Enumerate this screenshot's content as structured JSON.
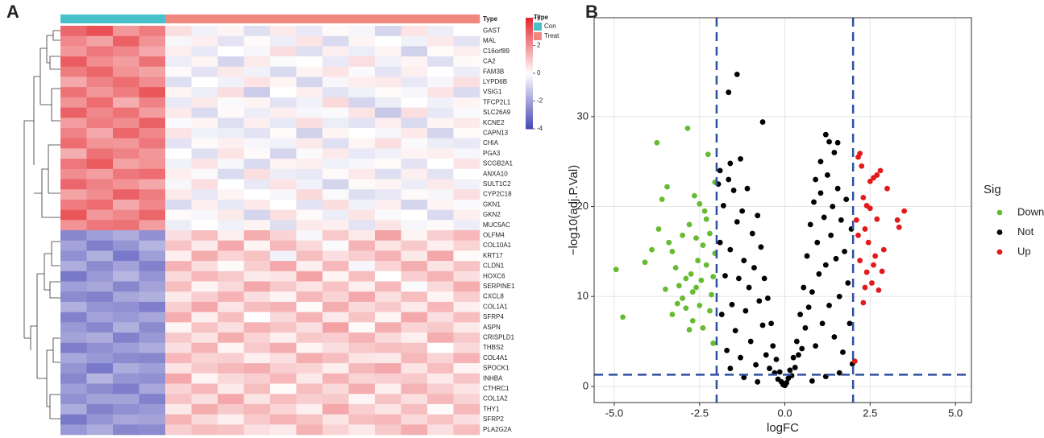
{
  "chart_data": [
    {
      "type": "heatmap",
      "panel_label": "A",
      "type_label": "Type",
      "legend_title": "Type",
      "groups": [
        {
          "name": "Con",
          "color": "#47c1c9"
        },
        {
          "name": "Treat",
          "color": "#f0877f"
        }
      ],
      "column_types": [
        "Con",
        "Con",
        "Con",
        "Con",
        "Treat",
        "Treat",
        "Treat",
        "Treat",
        "Treat",
        "Treat",
        "Treat",
        "Treat",
        "Treat",
        "Treat",
        "Treat",
        "Treat"
      ],
      "rows": [
        "GAST",
        "MAL",
        "C16orf89",
        "CA2",
        "FAM3B",
        "LYPD6B",
        "VSIG1",
        "TFCP2L1",
        "SLC26A9",
        "KCNE2",
        "CAPN13",
        "CHIA",
        "PGA3",
        "SCGB2A1",
        "ANXA10",
        "SULT1C2",
        "CYP2C18",
        "GKN1",
        "GKN2",
        "MUC5AC",
        "OLFM4",
        "COL10A1",
        "KRT17",
        "CLDN1",
        "HOXC6",
        "SERPINE1",
        "CXCL8",
        "COL1A1",
        "SFRP4",
        "ASPN",
        "CRISPLD1",
        "THBS2",
        "COL4A1",
        "SPOCK1",
        "INHBA",
        "CTHRC1",
        "COL1A2",
        "THY1",
        "SFRP2",
        "PLA2G2A"
      ],
      "values": [
        [
          2.8,
          3.2,
          1.9,
          2.4,
          0.6,
          -0.3,
          0.2,
          -0.7,
          0.4,
          -0.5,
          0.1,
          -0.2,
          -0.9,
          0.5,
          -0.4,
          0.0
        ],
        [
          2.2,
          1.7,
          2.9,
          2.0,
          -0.2,
          0.3,
          -0.6,
          0.1,
          -0.4,
          0.5,
          -0.8,
          0.2,
          0.0,
          -0.3,
          0.4,
          -0.6
        ],
        [
          1.9,
          2.5,
          2.2,
          1.6,
          0.3,
          -0.5,
          0.0,
          -0.2,
          0.6,
          -0.7,
          0.3,
          -0.4,
          0.2,
          -1.0,
          0.1,
          0.3
        ],
        [
          3.0,
          2.1,
          1.8,
          2.6,
          -0.4,
          0.2,
          -0.9,
          0.4,
          -0.1,
          0.0,
          -0.5,
          0.6,
          -0.3,
          0.2,
          -0.7,
          0.1
        ],
        [
          2.4,
          2.8,
          2.0,
          1.7,
          0.1,
          -0.6,
          0.4,
          -0.3,
          -0.8,
          0.2,
          0.5,
          -0.1,
          -0.6,
          0.3,
          0.0,
          -0.4
        ],
        [
          1.6,
          2.3,
          2.7,
          2.1,
          -0.7,
          0.0,
          -0.3,
          0.5,
          0.2,
          -0.9,
          -0.2,
          0.3,
          0.4,
          -0.5,
          -0.2,
          0.6
        ],
        [
          2.6,
          1.9,
          2.4,
          3.1,
          0.2,
          -0.4,
          0.6,
          -1.1,
          0.0,
          0.3,
          -0.6,
          -0.3,
          0.1,
          -0.2,
          0.5,
          -0.8
        ],
        [
          2.0,
          2.7,
          1.5,
          2.3,
          -0.5,
          0.4,
          -0.1,
          0.2,
          -0.6,
          -0.3,
          0.7,
          -0.9,
          -0.4,
          0.0,
          -0.3,
          0.2
        ],
        [
          2.9,
          2.2,
          2.6,
          1.8,
          0.4,
          -0.8,
          0.1,
          -0.4,
          0.3,
          -0.2,
          -0.1,
          0.5,
          -1.2,
          0.6,
          -0.5,
          -0.1
        ],
        [
          1.8,
          2.4,
          2.1,
          2.9,
          -0.1,
          0.2,
          -0.7,
          0.3,
          -0.5,
          0.6,
          -0.4,
          -0.6,
          0.3,
          -0.8,
          0.2,
          0.4
        ],
        [
          2.3,
          1.6,
          2.8,
          2.2,
          0.5,
          -0.3,
          -0.4,
          -0.6,
          0.1,
          -1.0,
          0.2,
          0.0,
          -0.2,
          0.4,
          -0.9,
          0.1
        ],
        [
          2.7,
          2.0,
          1.9,
          2.5,
          -0.6,
          0.1,
          0.3,
          -0.2,
          -0.3,
          0.4,
          -0.7,
          0.2,
          0.6,
          -0.1,
          -0.4,
          -0.5
        ],
        [
          1.5,
          2.6,
          2.3,
          1.9,
          0.0,
          -0.7,
          0.5,
          0.1,
          -0.9,
          -0.1,
          0.4,
          -0.5,
          -0.3,
          0.2,
          0.3,
          -0.2
        ],
        [
          2.5,
          3.0,
          1.7,
          2.0,
          -0.3,
          0.5,
          -0.2,
          -0.8,
          0.2,
          0.3,
          -0.3,
          -0.2,
          0.1,
          -0.6,
          0.0,
          0.5
        ],
        [
          2.1,
          1.8,
          2.5,
          2.7,
          0.3,
          -0.1,
          -0.8,
          0.6,
          -0.4,
          -0.5,
          0.1,
          0.4,
          -0.7,
          0.3,
          -0.6,
          0.0
        ],
        [
          2.8,
          2.3,
          2.0,
          1.6,
          -0.2,
          0.6,
          0.0,
          -0.5,
          0.5,
          -0.3,
          -0.9,
          0.1,
          0.2,
          -0.4,
          0.4,
          -0.3
        ],
        [
          1.7,
          2.1,
          2.9,
          2.4,
          0.4,
          -0.5,
          0.2,
          0.0,
          -0.2,
          0.7,
          -0.1,
          -0.7,
          -0.5,
          0.1,
          -0.2,
          0.6
        ],
        [
          2.4,
          2.7,
          1.6,
          2.2,
          -0.8,
          0.3,
          -0.5,
          0.4,
          0.0,
          -0.6,
          0.6,
          -0.3,
          0.3,
          -0.9,
          0.2,
          -0.1
        ],
        [
          3.1,
          1.9,
          2.2,
          2.8,
          0.1,
          -0.2,
          0.4,
          -0.9,
          0.6,
          0.1,
          -0.4,
          0.5,
          -0.1,
          0.0,
          -0.8,
          0.3
        ],
        [
          2.0,
          2.5,
          2.6,
          1.8,
          -0.4,
          0.0,
          -0.3,
          0.2,
          -0.7,
          0.4,
          0.3,
          -0.6,
          0.5,
          -0.2,
          0.1,
          -0.4
        ],
        [
          -2.6,
          -2.1,
          -1.8,
          -2.4,
          0.6,
          1.2,
          0.3,
          1.5,
          0.8,
          -0.2,
          1.0,
          0.4,
          1.7,
          0.2,
          0.9,
          1.3
        ],
        [
          -2.0,
          -2.8,
          -2.3,
          -1.6,
          1.1,
          0.4,
          1.6,
          0.2,
          1.3,
          0.7,
          -0.1,
          1.4,
          0.5,
          1.0,
          0.3,
          0.8
        ],
        [
          -2.4,
          -1.7,
          -2.9,
          -2.1,
          0.3,
          1.5,
          0.8,
          1.1,
          -0.3,
          1.2,
          0.6,
          0.9,
          1.4,
          0.4,
          1.6,
          0.1
        ],
        [
          -1.8,
          -2.5,
          -2.0,
          -2.7,
          1.4,
          0.6,
          0.1,
          0.9,
          1.6,
          0.3,
          1.3,
          -0.2,
          0.8,
          1.5,
          0.5,
          1.1
        ],
        [
          -2.9,
          -2.2,
          -1.6,
          -2.3,
          0.7,
          1.3,
          1.0,
          0.4,
          0.5,
          1.7,
          0.2,
          1.2,
          0.0,
          0.9,
          1.4,
          0.6
        ],
        [
          -2.1,
          -1.9,
          -2.6,
          -2.0,
          1.2,
          0.2,
          0.7,
          1.6,
          1.0,
          0.5,
          1.1,
          0.3,
          1.3,
          -0.1,
          0.7,
          1.5
        ],
        [
          -2.5,
          -2.7,
          -1.9,
          -1.7,
          0.4,
          0.9,
          1.4,
          0.6,
          0.2,
          1.3,
          0.8,
          1.6,
          0.6,
          1.2,
          0.2,
          0.9
        ],
        [
          -1.7,
          -2.3,
          -2.4,
          -2.8,
          0.9,
          1.6,
          0.5,
          1.2,
          1.4,
          0.1,
          1.5,
          0.7,
          1.0,
          0.4,
          1.3,
          0.3
        ],
        [
          -2.7,
          -2.0,
          -2.2,
          -1.9,
          1.5,
          0.3,
          1.2,
          0.0,
          0.7,
          1.4,
          0.4,
          1.1,
          0.2,
          1.6,
          0.6,
          1.2
        ],
        [
          -2.2,
          -2.6,
          -1.7,
          -2.5,
          0.2,
          1.1,
          0.6,
          1.4,
          1.1,
          0.6,
          1.7,
          0.1,
          1.5,
          0.8,
          1.0,
          0.4
        ],
        [
          -2.0,
          -1.8,
          -2.7,
          -2.2,
          1.0,
          0.5,
          1.5,
          0.8,
          0.3,
          1.0,
          0.9,
          1.4,
          0.7,
          0.3,
          1.5,
          1.0
        ],
        [
          -2.8,
          -2.4,
          -2.1,
          -1.8,
          0.6,
          1.4,
          0.2,
          1.0,
          1.5,
          0.2,
          0.6,
          1.0,
          1.2,
          1.1,
          0.0,
          0.7
        ],
        [
          -1.9,
          -2.2,
          -2.5,
          -2.6,
          1.3,
          0.8,
          0.9,
          0.3,
          0.6,
          1.5,
          1.2,
          0.5,
          0.4,
          1.3,
          0.8,
          1.4
        ],
        [
          -2.3,
          -2.9,
          -1.8,
          -2.1,
          0.5,
          1.0,
          1.3,
          1.5,
          0.9,
          0.8,
          0.3,
          1.3,
          1.6,
          0.5,
          1.2,
          0.2
        ],
        [
          -2.6,
          -1.6,
          -2.3,
          -2.4,
          1.6,
          0.2,
          0.7,
          0.9,
          1.3,
          0.4,
          1.4,
          0.8,
          0.9,
          1.0,
          0.4,
          1.1
        ],
        [
          -2.1,
          -2.5,
          -2.8,
          -1.9,
          0.8,
          1.3,
          0.4,
          1.2,
          0.1,
          1.2,
          0.7,
          1.5,
          0.3,
          1.4,
          0.9,
          0.5
        ],
        [
          -2.4,
          -2.0,
          -2.0,
          -2.7,
          1.1,
          0.6,
          1.6,
          0.5,
          1.2,
          0.9,
          1.0,
          0.2,
          1.1,
          0.6,
          1.3,
          0.8
        ],
        [
          -1.8,
          -2.7,
          -2.4,
          -2.2,
          0.4,
          1.5,
          1.0,
          1.3,
          0.8,
          0.3,
          1.6,
          0.9,
          0.5,
          1.2,
          0.1,
          1.3
        ],
        [
          -2.9,
          -2.3,
          -1.9,
          -2.0,
          1.4,
          0.7,
          0.3,
          1.0,
          1.4,
          1.1,
          0.5,
          1.2,
          1.3,
          0.7,
          1.1,
          0.6
        ],
        [
          -2.2,
          -1.8,
          -2.6,
          -2.5,
          0.9,
          1.2,
          1.1,
          0.6,
          0.4,
          1.4,
          0.8,
          0.4,
          1.0,
          1.5,
          0.6,
          1.2
        ]
      ],
      "colorbar": {
        "lim": [
          -4,
          4
        ],
        "ticks": [
          4,
          2,
          0,
          -2,
          -4
        ],
        "colors": [
          "#4646b4",
          "#ffffff",
          "#e4262c"
        ]
      }
    },
    {
      "type": "scatter",
      "panel_label": "B",
      "xlabel": "logFC",
      "ylabel": "−log10(adj.P.Val)",
      "xlim": [
        -5.59,
        5.47
      ],
      "ylim": [
        -1.8,
        41
      ],
      "xticks": [
        {
          "value": -5,
          "label": "-5.0"
        },
        {
          "value": -2.5,
          "label": "-2.5"
        },
        {
          "value": 0,
          "label": "0.0"
        },
        2.5,
        {
          "value": 5,
          "label": "5.0"
        }
      ],
      "yticks": [
        0,
        10,
        20,
        30
      ],
      "grid": true,
      "thresholds": {
        "x": [
          -2,
          2
        ],
        "y": 1.3,
        "color": "#2f4f9f"
      },
      "legend_title": "Sig",
      "series": [
        {
          "name": "Down",
          "color": "#66bb33",
          "x": [
            -4.95,
            -4.75,
            -3.75,
            -3.7,
            -3.6,
            -3.45,
            -3.4,
            -3.3,
            -3.2,
            -3.1,
            -3.0,
            -2.9,
            -2.85,
            -2.8,
            -2.75,
            -2.7,
            -2.65,
            -2.6,
            -2.55,
            -2.5,
            -2.45,
            -2.4,
            -2.35,
            -2.3,
            -2.25,
            -2.2,
            -2.15,
            -2.1,
            -2.05,
            -2.05,
            -3.5,
            -3.3,
            -3.0,
            -2.7,
            -2.4,
            -2.2,
            -4.1,
            -3.9,
            -2.9,
            -2.6,
            -2.3,
            -2.1,
            -2.8,
            -2.5,
            -3.15
          ],
          "values": [
            13.0,
            7.7,
            27.1,
            17.5,
            20.8,
            22.2,
            16.0,
            15.0,
            13.2,
            11.2,
            9.8,
            8.7,
            28.7,
            18.0,
            12.5,
            10.5,
            21.2,
            16.5,
            14.0,
            9.0,
            11.8,
            6.5,
            19.5,
            13.5,
            25.8,
            17.0,
            10.2,
            4.8,
            22.7,
            14.8,
            10.8,
            8.0,
            16.8,
            7.3,
            15.7,
            8.4,
            13.8,
            15.2,
            12.0,
            11.0,
            18.6,
            12.2,
            6.3,
            20.3,
            9.2
          ]
        },
        {
          "name": "Not",
          "color": "#000000",
          "x": [
            -1.4,
            -1.65,
            -0.65,
            1.2,
            1.3,
            1.55,
            -1.9,
            -1.6,
            -1.3,
            1.05,
            1.45,
            0.9,
            -1.95,
            -1.9,
            -1.85,
            -1.8,
            -1.75,
            -1.7,
            -1.65,
            -1.6,
            -1.55,
            -1.5,
            -1.45,
            -1.4,
            -1.35,
            -1.3,
            -1.25,
            -1.2,
            -1.15,
            -1.1,
            -1.05,
            -1.0,
            -0.95,
            -0.9,
            -0.85,
            -0.8,
            -0.75,
            -0.7,
            -0.65,
            -0.6,
            -0.55,
            -0.5,
            -0.45,
            -0.4,
            -0.35,
            -0.3,
            -0.25,
            -0.2,
            -0.15,
            -0.1,
            -0.05,
            0.0,
            0.05,
            0.1,
            0.15,
            0.2,
            0.25,
            0.3,
            0.35,
            0.4,
            0.45,
            0.5,
            0.55,
            0.6,
            0.65,
            0.7,
            0.75,
            0.8,
            0.85,
            0.9,
            0.95,
            1.0,
            1.05,
            1.1,
            1.15,
            1.2,
            1.25,
            1.3,
            1.35,
            1.4,
            1.45,
            1.5,
            1.55,
            1.6,
            1.65,
            1.7,
            1.75,
            1.8,
            1.85,
            1.9,
            1.95,
            1.98,
            -1.2,
            -0.8,
            0.8,
            1.2,
            -1.6,
            1.6
          ],
          "values": [
            34.7,
            32.7,
            29.4,
            28.0,
            27.2,
            27.1,
            24.0,
            24.8,
            25.3,
            25.0,
            26.0,
            23.0,
            22.5,
            16.0,
            8.0,
            20.1,
            12.3,
            4.0,
            23.0,
            15.2,
            9.1,
            21.8,
            6.2,
            18.3,
            12.0,
            3.2,
            19.5,
            14.0,
            8.4,
            22.0,
            11.0,
            5.0,
            17.0,
            13.2,
            2.4,
            19.0,
            9.5,
            15.5,
            6.8,
            12.0,
            3.5,
            9.8,
            2.0,
            7.0,
            4.5,
            1.5,
            3.0,
            0.8,
            1.6,
            0.5,
            0.2,
            0.1,
            0.4,
            0.9,
            1.8,
            1.2,
            3.2,
            2.1,
            5.0,
            3.5,
            8.0,
            4.2,
            11.0,
            6.5,
            14.5,
            8.8,
            18.0,
            10.5,
            20.5,
            4.5,
            16.0,
            12.5,
            21.5,
            7.0,
            18.8,
            13.5,
            23.5,
            9.0,
            16.8,
            20.0,
            5.5,
            14.2,
            22.0,
            10.0,
            18.5,
            3.8,
            15.0,
            20.8,
            11.5,
            7.0,
            17.5,
            2.5,
            1.0,
            0.5,
            0.6,
            1.1,
            2.0,
            1.5
          ]
        },
        {
          "name": "Up",
          "color": "#e31a1c",
          "x": [
            2.05,
            2.1,
            2.15,
            2.2,
            2.25,
            2.3,
            2.35,
            2.4,
            2.45,
            2.5,
            2.55,
            2.6,
            2.65,
            2.7,
            2.75,
            2.8,
            2.85,
            3.0,
            3.3,
            3.5,
            3.35,
            2.3,
            2.2,
            2.6,
            2.4,
            2.15,
            2.5,
            2.7,
            2.9,
            2.35
          ],
          "values": [
            2.8,
            18.5,
            25.5,
            14.0,
            24.5,
            21.0,
            17.5,
            12.7,
            16.0,
            19.8,
            11.5,
            23.2,
            14.5,
            18.6,
            10.7,
            24.0,
            12.8,
            22.0,
            18.5,
            19.5,
            17.7,
            9.3,
            25.9,
            13.5,
            20.1,
            16.8,
            22.8,
            23.5,
            15.2,
            11.0
          ]
        }
      ]
    }
  ]
}
